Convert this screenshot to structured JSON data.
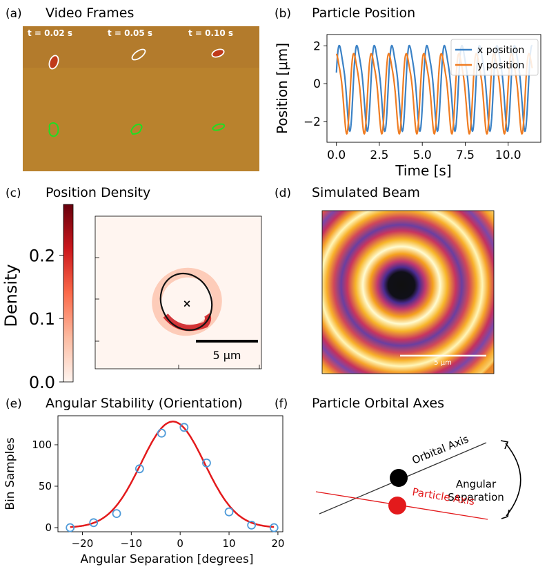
{
  "panels": {
    "a": {
      "letter": "(a)",
      "title": "Video Frames",
      "frame_labels": [
        "t = 0.02 s",
        "t = 0.05 s",
        "t = 0.10 s"
      ]
    },
    "b": {
      "letter": "(b)",
      "title": "Particle Position"
    },
    "c": {
      "letter": "(c)",
      "title": "Position Density"
    },
    "d": {
      "letter": "(d)",
      "title": "Simulated Beam",
      "scalebar_label": "5 μm"
    },
    "e": {
      "letter": "(e)",
      "title": "Angular Stability (Orientation)"
    },
    "f": {
      "letter": "(f)",
      "title": "Particle Orbital Axes",
      "orbital_axis_label": "Orbital Axis",
      "angular_label_1": "Angular",
      "angular_label_2": "Separation",
      "particle_axis_label": "Particle Axis"
    }
  },
  "chart_data": [
    {
      "id": "b",
      "type": "line",
      "title": "Particle Position",
      "xlabel": "Time [s]",
      "ylabel": "Position [μm]",
      "xlim": [
        -0.55,
        11.9
      ],
      "ylim": [
        -3.1,
        2.6
      ],
      "xticks": [
        0.0,
        2.5,
        5.0,
        7.5,
        10.0
      ],
      "xtick_labels": [
        "0.0",
        "2.5",
        "5.0",
        "7.5",
        "10.0"
      ],
      "yticks": [
        -2,
        0,
        2
      ],
      "ytick_labels": [
        "−2",
        "0",
        "2"
      ],
      "legend": "top-right",
      "series": [
        {
          "name": "x position",
          "color": "#3b82c6",
          "amplitude": 2.35,
          "period": 1.02,
          "phase": 0.1,
          "t_end": 11.4
        },
        {
          "name": "y position",
          "color": "#f07d22",
          "amplitude": 2.2,
          "offset": -0.3,
          "period": 1.02,
          "phase": 1.2,
          "t_end": 11.4
        }
      ]
    },
    {
      "id": "c",
      "type": "heatmap",
      "title": "Position Density",
      "colorbar_label": "Density",
      "colorbar_range": [
        0.0,
        0.28
      ],
      "colorbar_ticks": [
        0.0,
        0.1,
        0.2
      ],
      "colorbar_tick_labels": [
        "0.0",
        "0.1",
        "0.2"
      ],
      "scalebar_label": "5 μm"
    },
    {
      "id": "e",
      "type": "scatter",
      "title": "Angular Stability (Orientation)",
      "xlabel": "Angular Separation [degrees]",
      "ylabel": "Bin Samples",
      "xlim": [
        -25,
        21
      ],
      "ylim": [
        -5,
        135
      ],
      "xticks": [
        -20,
        -10,
        0,
        10,
        20
      ],
      "xtick_labels": [
        "−20",
        "−10",
        "0",
        "10",
        "20"
      ],
      "yticks": [
        0,
        50,
        100
      ],
      "ytick_labels": [
        "0",
        "50",
        "100"
      ],
      "points_x": [
        -22.5,
        -17.7,
        -13.0,
        -8.3,
        -3.8,
        0.8,
        5.4,
        10.0,
        14.6,
        19.2
      ],
      "points_y": [
        0,
        6,
        17,
        71,
        114,
        121,
        78,
        19,
        3,
        0
      ],
      "fit": {
        "type": "gaussian",
        "amplitude": 128,
        "mean": -1.5,
        "sigma": 6.5,
        "color": "#e31a1c"
      },
      "marker_color": "#4f9bd9"
    }
  ]
}
